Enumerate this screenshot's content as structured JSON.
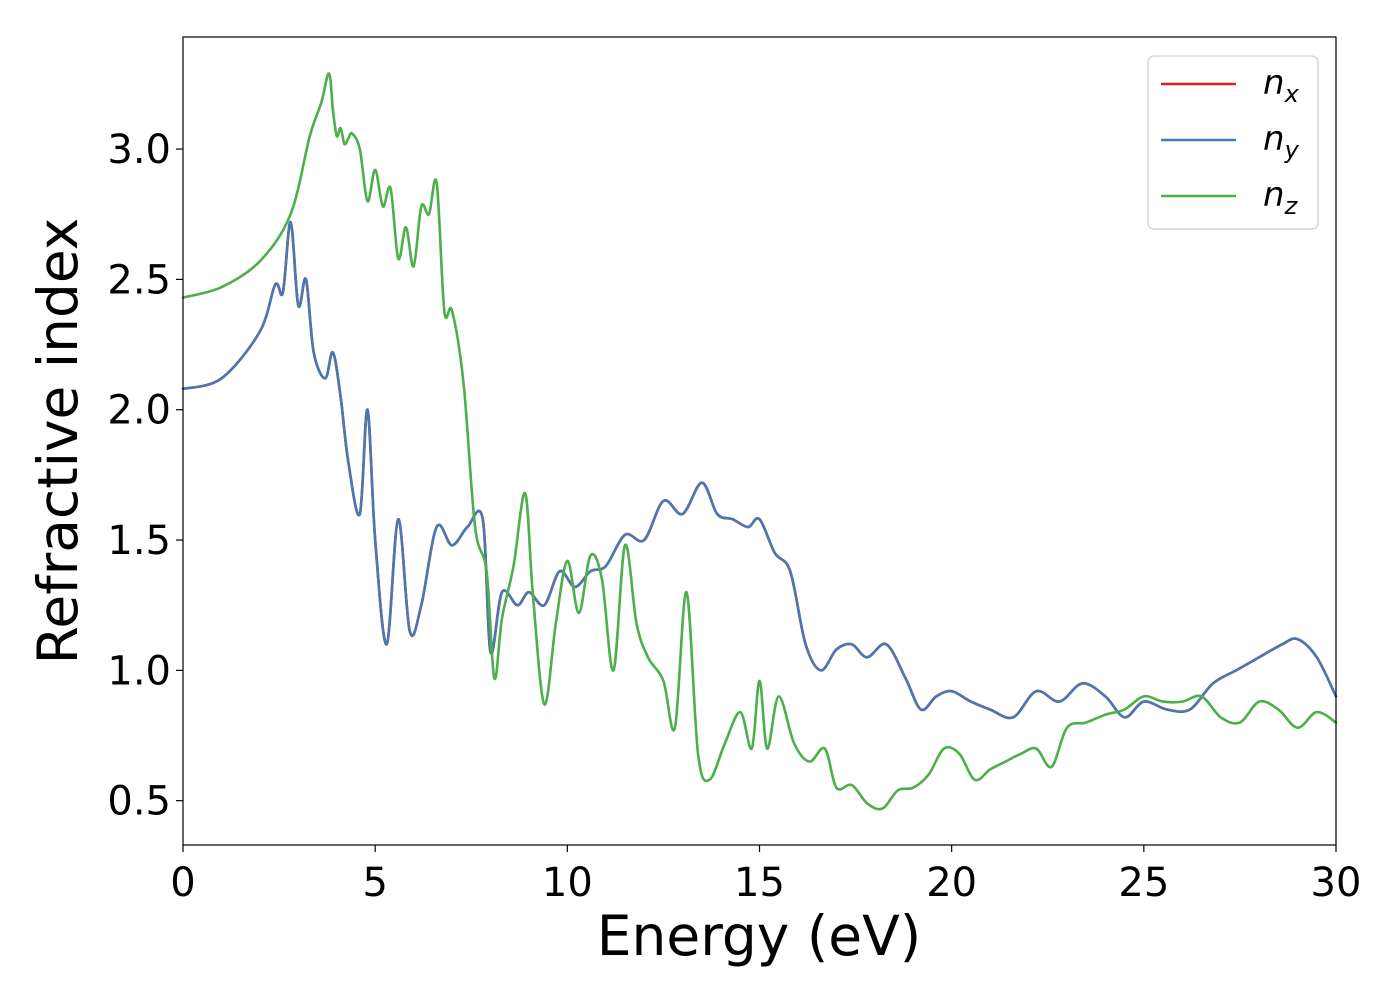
{
  "chart_data": {
    "type": "line",
    "title": "",
    "xlabel": "Energy (eV)",
    "ylabel": "Refractive index",
    "xlim": [
      0,
      30
    ],
    "ylim": [
      0.33,
      3.43
    ],
    "xticks": [
      0,
      5,
      10,
      15,
      20,
      25,
      30
    ],
    "yticks": [
      0.5,
      1.0,
      1.5,
      2.0,
      2.5,
      3.0
    ],
    "xtick_labels": [
      "0",
      "5",
      "10",
      "15",
      "20",
      "25",
      "30"
    ],
    "ytick_labels": [
      "0.5",
      "1.0",
      "1.5",
      "2.0",
      "2.5",
      "3.0"
    ],
    "grid": false,
    "legend_position": "top-right",
    "series": [
      {
        "name": "n_x",
        "label_base": "n",
        "label_sub": "x",
        "color": "#e41a1c",
        "x": [
          0,
          1,
          2,
          2.4,
          2.6,
          2.8,
          3.0,
          3.2,
          3.4,
          3.7,
          3.9,
          4.1,
          4.3,
          4.6,
          4.8,
          5.0,
          5.3,
          5.6,
          5.9,
          6.2,
          6.6,
          7.0,
          7.4,
          7.8,
          8.0,
          8.3,
          8.7,
          9.0,
          9.4,
          9.8,
          10.2,
          10.6,
          11.0,
          11.5,
          12.0,
          12.5,
          13.0,
          13.5,
          13.9,
          14.3,
          14.7,
          15.0,
          15.4,
          15.8,
          16.2,
          16.6,
          17.0,
          17.4,
          17.8,
          18.3,
          18.8,
          19.2,
          19.6,
          20.0,
          20.5,
          21.0,
          21.6,
          22.2,
          22.8,
          23.4,
          24.0,
          24.5,
          25.0,
          25.6,
          26.2,
          26.8,
          27.4,
          28.0,
          28.6,
          29.0,
          29.5,
          30.0
        ],
        "y": [
          2.08,
          2.12,
          2.3,
          2.48,
          2.45,
          2.72,
          2.4,
          2.5,
          2.22,
          2.12,
          2.22,
          2.05,
          1.8,
          1.6,
          2.0,
          1.5,
          1.1,
          1.58,
          1.15,
          1.25,
          1.55,
          1.48,
          1.55,
          1.58,
          1.07,
          1.3,
          1.25,
          1.3,
          1.25,
          1.38,
          1.32,
          1.38,
          1.4,
          1.52,
          1.5,
          1.65,
          1.6,
          1.72,
          1.6,
          1.58,
          1.55,
          1.58,
          1.45,
          1.38,
          1.1,
          1.0,
          1.08,
          1.1,
          1.05,
          1.1,
          0.97,
          0.85,
          0.9,
          0.92,
          0.88,
          0.85,
          0.82,
          0.92,
          0.88,
          0.95,
          0.9,
          0.82,
          0.88,
          0.85,
          0.85,
          0.95,
          1.0,
          1.05,
          1.1,
          1.12,
          1.05,
          0.9
        ]
      },
      {
        "name": "n_y",
        "label_base": "n",
        "label_sub": "y",
        "color": "#4a78b0",
        "x": [
          0,
          1,
          2,
          2.4,
          2.6,
          2.8,
          3.0,
          3.2,
          3.4,
          3.7,
          3.9,
          4.1,
          4.3,
          4.6,
          4.8,
          5.0,
          5.3,
          5.6,
          5.9,
          6.2,
          6.6,
          7.0,
          7.4,
          7.8,
          8.0,
          8.3,
          8.7,
          9.0,
          9.4,
          9.8,
          10.2,
          10.6,
          11.0,
          11.5,
          12.0,
          12.5,
          13.0,
          13.5,
          13.9,
          14.3,
          14.7,
          15.0,
          15.4,
          15.8,
          16.2,
          16.6,
          17.0,
          17.4,
          17.8,
          18.3,
          18.8,
          19.2,
          19.6,
          20.0,
          20.5,
          21.0,
          21.6,
          22.2,
          22.8,
          23.4,
          24.0,
          24.5,
          25.0,
          25.6,
          26.2,
          26.8,
          27.4,
          28.0,
          28.6,
          29.0,
          29.5,
          30.0
        ],
        "y": [
          2.08,
          2.12,
          2.3,
          2.48,
          2.45,
          2.72,
          2.4,
          2.5,
          2.22,
          2.12,
          2.22,
          2.05,
          1.8,
          1.6,
          2.0,
          1.5,
          1.1,
          1.58,
          1.15,
          1.25,
          1.55,
          1.48,
          1.55,
          1.58,
          1.07,
          1.3,
          1.25,
          1.3,
          1.25,
          1.38,
          1.32,
          1.38,
          1.4,
          1.52,
          1.5,
          1.65,
          1.6,
          1.72,
          1.6,
          1.58,
          1.55,
          1.58,
          1.45,
          1.38,
          1.1,
          1.0,
          1.08,
          1.1,
          1.05,
          1.1,
          0.97,
          0.85,
          0.9,
          0.92,
          0.88,
          0.85,
          0.82,
          0.92,
          0.88,
          0.95,
          0.9,
          0.82,
          0.88,
          0.85,
          0.85,
          0.95,
          1.0,
          1.05,
          1.1,
          1.12,
          1.05,
          0.9
        ]
      },
      {
        "name": "n_z",
        "label_base": "n",
        "label_sub": "z",
        "color": "#4daf4a",
        "x": [
          0,
          1,
          2,
          2.8,
          3.3,
          3.6,
          3.8,
          3.9,
          4.0,
          4.1,
          4.2,
          4.3,
          4.4,
          4.6,
          4.8,
          5.0,
          5.2,
          5.4,
          5.6,
          5.8,
          6.0,
          6.2,
          6.4,
          6.6,
          6.8,
          7.0,
          7.3,
          7.6,
          7.9,
          8.1,
          8.3,
          8.6,
          8.9,
          9.1,
          9.4,
          9.7,
          10.0,
          10.3,
          10.6,
          10.9,
          11.2,
          11.5,
          11.8,
          12.1,
          12.5,
          12.8,
          13.1,
          13.4,
          13.7,
          14.1,
          14.5,
          14.8,
          15.0,
          15.2,
          15.5,
          15.9,
          16.3,
          16.7,
          17.0,
          17.4,
          17.8,
          18.2,
          18.6,
          19.0,
          19.4,
          19.8,
          20.2,
          20.6,
          21.0,
          21.4,
          21.8,
          22.2,
          22.6,
          23.0,
          23.5,
          24.0,
          24.5,
          25.0,
          25.5,
          26.0,
          26.5,
          27.0,
          27.5,
          28.0,
          28.5,
          29.0,
          29.5,
          30.0
        ],
        "y": [
          2.43,
          2.47,
          2.57,
          2.75,
          3.05,
          3.18,
          3.29,
          3.15,
          3.05,
          3.08,
          3.02,
          3.04,
          3.06,
          3.0,
          2.8,
          2.92,
          2.78,
          2.85,
          2.58,
          2.7,
          2.55,
          2.78,
          2.75,
          2.87,
          2.38,
          2.38,
          2.1,
          1.55,
          1.38,
          0.97,
          1.2,
          1.4,
          1.68,
          1.3,
          0.87,
          1.18,
          1.42,
          1.22,
          1.44,
          1.35,
          1.0,
          1.48,
          1.18,
          1.05,
          0.96,
          0.78,
          1.3,
          0.68,
          0.58,
          0.72,
          0.84,
          0.7,
          0.96,
          0.7,
          0.9,
          0.72,
          0.65,
          0.7,
          0.55,
          0.56,
          0.49,
          0.47,
          0.54,
          0.55,
          0.6,
          0.7,
          0.68,
          0.58,
          0.62,
          0.65,
          0.68,
          0.7,
          0.63,
          0.78,
          0.8,
          0.83,
          0.85,
          0.9,
          0.88,
          0.88,
          0.9,
          0.82,
          0.8,
          0.88,
          0.85,
          0.78,
          0.84,
          0.8
        ]
      }
    ]
  }
}
